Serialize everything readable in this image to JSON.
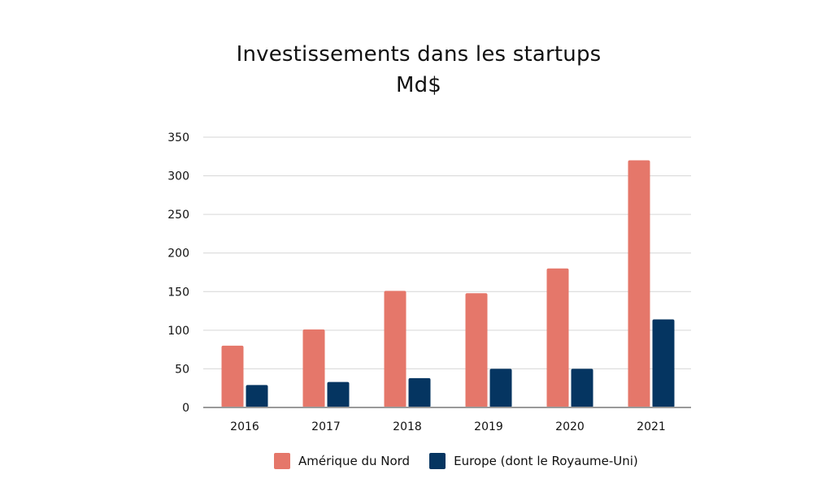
{
  "title": "Investissements dans les startups",
  "subtitle": "Md$",
  "chart_data": {
    "type": "bar",
    "title": "Investissements dans les startups",
    "subtitle": "Md$",
    "categories": [
      "2016",
      "2017",
      "2018",
      "2019",
      "2020",
      "2021"
    ],
    "series": [
      {
        "name": "Amérique du Nord",
        "color": "#e5776a",
        "values": [
          80,
          101,
          151,
          148,
          180,
          320
        ]
      },
      {
        "name": "Europe (dont le Royaume-Uni)",
        "color": "#053561",
        "values": [
          29,
          33,
          38,
          50,
          50,
          114
        ]
      }
    ],
    "ylim": [
      0,
      350
    ],
    "yticks": [
      0,
      50,
      100,
      150,
      200,
      250,
      300,
      350
    ],
    "grid": true,
    "legend_position": "bottom"
  }
}
